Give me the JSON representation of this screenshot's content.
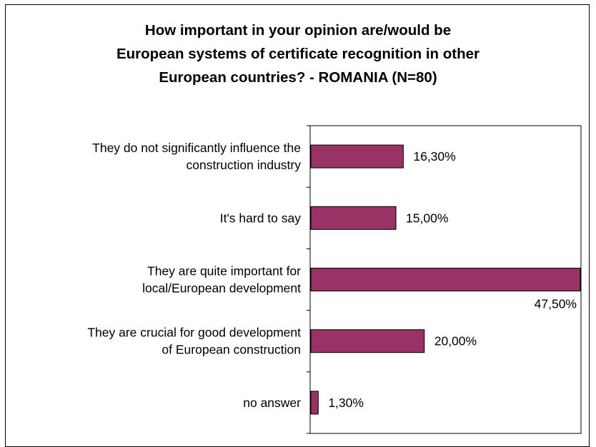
{
  "chart_data": {
    "type": "bar",
    "orientation": "horizontal",
    "title_lines": [
      "How important in your opinion are/would be",
      "European systems of certificate recognition in other",
      "European countries? - ROMANIA (N=80)"
    ],
    "categories": [
      [
        "They do not significantly influence the",
        "construction industry"
      ],
      [
        "It's hard to say"
      ],
      [
        "They are quite important for",
        "local/European development"
      ],
      [
        "They are crucial for good development",
        "of European construction"
      ],
      [
        "no answer"
      ]
    ],
    "values": [
      16.3,
      15.0,
      47.5,
      20.0,
      1.3
    ],
    "value_labels": [
      "16,30%",
      "15,00%",
      "47,50%",
      "20,00%",
      "1,30%"
    ],
    "xlim": [
      0,
      47.5
    ],
    "bar_color": "#993366",
    "grid": false,
    "legend": "none"
  }
}
